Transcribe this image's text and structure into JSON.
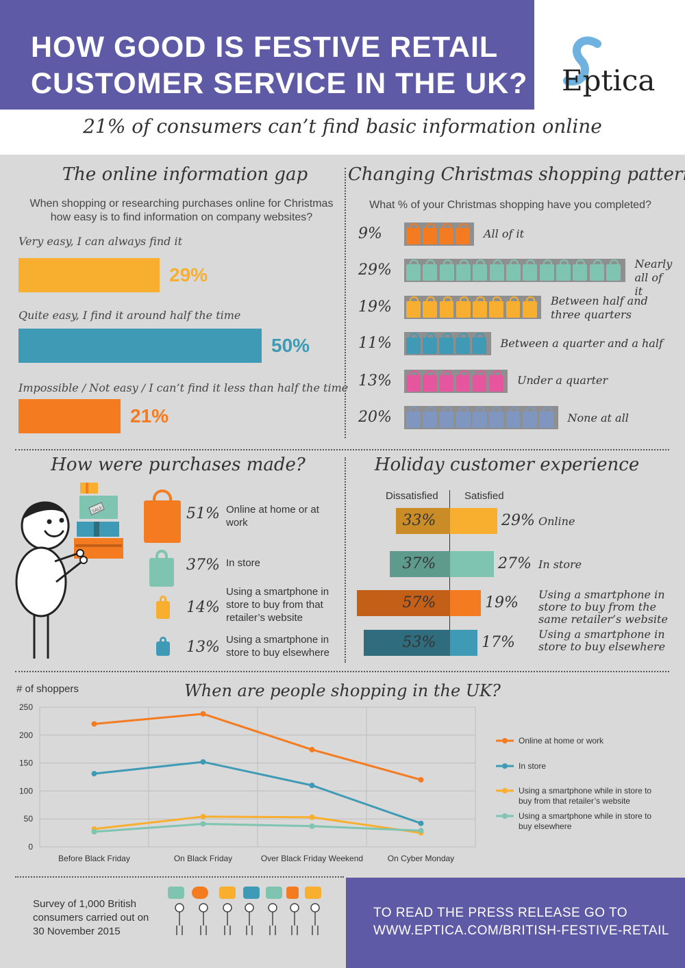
{
  "header": {
    "title_line1": "HOW GOOD IS FESTIVE RETAIL",
    "title_line2": "CUSTOMER SERVICE IN THE UK?",
    "logo_text": "Eptica",
    "subtitle": "21% of consumers can’t find basic information online",
    "colors": {
      "purple": "#5e5aa5",
      "orange": "#f47b20",
      "teal": "#3f9bb5",
      "yellow": "#f8ae2f",
      "mint": "#7ec4b1",
      "pink": "#e6569f",
      "slate": "#7f97c0"
    }
  },
  "info_gap": {
    "title": "The online information gap",
    "question": "When shopping or researching purchases online for Christmas how easy is to find information on company websites?",
    "items": [
      {
        "label": "Very easy, I can always find it",
        "value": "29%",
        "percent": 29,
        "color": "#f8ae2f"
      },
      {
        "label": "Quite easy, I find it around half the time",
        "value": "50%",
        "percent": 50,
        "color": "#3f9bb5"
      },
      {
        "label": "Impossible / Not easy / I can’t find it less than half the time",
        "value": "21%",
        "percent": 21,
        "color": "#f47b20"
      }
    ]
  },
  "patterns": {
    "title": "Changing Christmas shopping patterns",
    "question": "What % of your Christmas shopping have you completed?",
    "items": [
      {
        "pct": "9%",
        "bags": 4,
        "color": "#f47b20",
        "label": "All of it"
      },
      {
        "pct": "29%",
        "bags": 13,
        "color": "#7ec4b1",
        "label": "Nearly all of it"
      },
      {
        "pct": "19%",
        "bags": 8,
        "color": "#f8ae2f",
        "label": "Between half and three quarters"
      },
      {
        "pct": "11%",
        "bags": 5,
        "color": "#3f9bb5",
        "label": "Between a quarter and a half"
      },
      {
        "pct": "13%",
        "bags": 6,
        "color": "#e6569f",
        "label": "Under a quarter"
      },
      {
        "pct": "20%",
        "bags": 9,
        "color": "#7f97c0",
        "label": "None at all"
      }
    ]
  },
  "purchases": {
    "title": "How were purchases made?",
    "sale_tag": "SALE",
    "items": [
      {
        "pct": "51%",
        "text": "Online at home or at work",
        "color": "#f47b20"
      },
      {
        "pct": "37%",
        "text": "In store",
        "color": "#7ec4b1"
      },
      {
        "pct": "14%",
        "text": "Using a smartphone in store to buy from that retailer’s website",
        "color": "#f8ae2f"
      },
      {
        "pct": "13%",
        "text": "Using a smartphone in store to buy elsewhere",
        "color": "#3f9bb5"
      }
    ]
  },
  "holiday": {
    "title": "Holiday customer experience",
    "dissatisfied_label": "Dissatisfied",
    "satisfied_label": "Satisfied",
    "rows": [
      {
        "dissatisfied": "33%",
        "dis_value": 33,
        "satisfied": "29%",
        "sat_value": 29,
        "label": "Online",
        "dis_color": "#c98c27",
        "sat_color": "#f8ae2f"
      },
      {
        "dissatisfied": "37%",
        "dis_value": 37,
        "satisfied": "27%",
        "sat_value": 27,
        "label": "In store",
        "dis_color": "#5f9b8c",
        "sat_color": "#7ec4b1"
      },
      {
        "dissatisfied": "57%",
        "dis_value": 57,
        "satisfied": "19%",
        "sat_value": 19,
        "label": "Using a smartphone in store to buy from the same retailer’s website",
        "dis_color": "#c45f18",
        "sat_color": "#f47b20"
      },
      {
        "dissatisfied": "53%",
        "dis_value": 53,
        "satisfied": "17%",
        "sat_value": 17,
        "label": "Using a smartphone in store to buy elsewhere",
        "dis_color": "#2e6c7e",
        "sat_color": "#3f9bb5"
      }
    ]
  },
  "chart_data": {
    "type": "line",
    "title": "When are people shopping in the UK?",
    "ylabel": "# of shoppers",
    "categories": [
      "Before Black Friday",
      "On Black Friday",
      "Over Black Friday Weekend",
      "On Cyber Monday"
    ],
    "ylim": [
      0,
      250
    ],
    "yticks": [
      0,
      50,
      100,
      150,
      200,
      250
    ],
    "grid": true,
    "legend_position": "right",
    "series": [
      {
        "name": "Online at home or work",
        "values": [
          220,
          238,
          174,
          120
        ],
        "color": "#f47b20"
      },
      {
        "name": "In store",
        "values": [
          131,
          152,
          110,
          42
        ],
        "color": "#3f9bb5"
      },
      {
        "name": "Using a smartphone while in store to buy from that retailer’s website",
        "values": [
          32,
          54,
          53,
          25
        ],
        "color": "#f8ae2f"
      },
      {
        "name": "Using a smartphone while in store to buy elsewhere",
        "values": [
          27,
          41,
          37,
          29
        ],
        "color": "#7ec4b1"
      }
    ]
  },
  "footer": {
    "survey": "Survey of 1,000 British consumers carried out on 30 November 2015",
    "link_line1": "TO READ THE PRESS RELEASE GO TO",
    "link_line2": "WWW.EPTICA.COM/BRITISH-FESTIVE-RETAIL"
  }
}
